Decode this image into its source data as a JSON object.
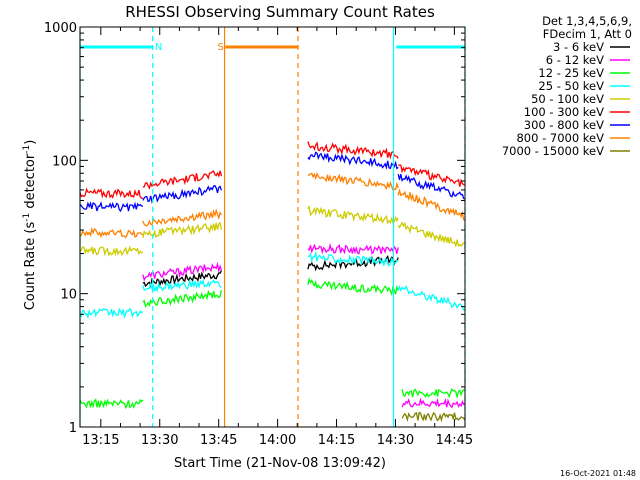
{
  "chart_data": {
    "type": "line",
    "title": "RHESSI Observing Summary Count Rates",
    "xlabel": "Start Time (21-Nov-08 13:09:42)",
    "ylabel_main": "Count Rate (s",
    "ylabel_sup1": "-1",
    "ylabel_mid": " detector",
    "ylabel_sup2": "-1",
    "ylabel_end": ")",
    "y_scale": "log",
    "ylim": [
      1,
      1000
    ],
    "xlim_minutes": [
      0,
      98
    ],
    "x_ticks": [
      {
        "label": "13:15",
        "minute": 5.3
      },
      {
        "label": "13:30",
        "minute": 20.3
      },
      {
        "label": "13:45",
        "minute": 35.3
      },
      {
        "label": "14:00",
        "minute": 50.3
      },
      {
        "label": "14:15",
        "minute": 65.3
      },
      {
        "label": "14:30",
        "minute": 80.3
      },
      {
        "label": "14:45",
        "minute": 95.3
      }
    ],
    "y_ticks": [
      {
        "label": "1",
        "value": 1
      },
      {
        "label": "10",
        "value": 10
      },
      {
        "label": "100",
        "value": 100
      },
      {
        "label": "1000",
        "value": 1000
      }
    ],
    "legend_header": [
      "Det 1,3,4,5,6,9,",
      "FDecim 1, Att 0"
    ],
    "legend_placement": "right",
    "timestamp": "16-Oct-2021 01:48",
    "markers": [
      {
        "label": "N",
        "color": "#00ffff",
        "start": 0,
        "end": 18.5,
        "label_at": 20
      },
      {
        "label": "S",
        "color": "#ff8000",
        "start": 37,
        "end": 55.5,
        "label_at": 35.8
      },
      {
        "label": "",
        "color": "#00ffff",
        "start": 80.5,
        "end": 98,
        "label_at": null
      }
    ],
    "boundaries": [
      {
        "minute": 0,
        "color": "#00ffff",
        "style": "solid"
      },
      {
        "minute": 18.5,
        "color": "#00ffff",
        "style": "dashed"
      },
      {
        "minute": 36.8,
        "color": "#ff8000",
        "style": "solid"
      },
      {
        "minute": 55.5,
        "color": "#ff8000",
        "style": "dashed"
      },
      {
        "minute": 79.8,
        "color": "#00ffff",
        "style": "solid"
      },
      {
        "minute": 98,
        "color": "#00ffff",
        "style": "dashed"
      }
    ],
    "series": [
      {
        "name": "3 - 6 keV",
        "color": "#000000",
        "segments": [
          {
            "x": [
              16,
              36
            ],
            "y": [
              12,
              14
            ]
          },
          {
            "x": [
              58,
              81
            ],
            "y": [
              16,
              18
            ]
          }
        ]
      },
      {
        "name": "6 - 12 keV",
        "color": "#ff00ff",
        "segments": [
          {
            "x": [
              16,
              36
            ],
            "y": [
              13.5,
              16
            ]
          },
          {
            "x": [
              58,
              81
            ],
            "y": [
              22,
              21
            ]
          },
          {
            "x": [
              82,
              98
            ],
            "y": [
              1.5,
              1.5
            ]
          }
        ]
      },
      {
        "name": "12 - 25 keV",
        "color": "#00ff00",
        "segments": [
          {
            "x": [
              0,
              16
            ],
            "y": [
              1.5,
              1.5
            ]
          },
          {
            "x": [
              16,
              36
            ],
            "y": [
              8.5,
              10
            ]
          },
          {
            "x": [
              58,
              81
            ],
            "y": [
              12,
              10.5
            ]
          },
          {
            "x": [
              82,
              98
            ],
            "y": [
              1.8,
              1.8
            ]
          }
        ]
      },
      {
        "name": "25 - 50 keV",
        "color": "#00ffff",
        "segments": [
          {
            "x": [
              0,
              16
            ],
            "y": [
              7.2,
              7.2
            ]
          },
          {
            "x": [
              16,
              36
            ],
            "y": [
              11,
              12
            ]
          },
          {
            "x": [
              58,
              81
            ],
            "y": [
              19,
              17
            ]
          },
          {
            "x": [
              81,
              98
            ],
            "y": [
              11,
              8
            ]
          }
        ]
      },
      {
        "name": "50 - 100 keV",
        "color": "#cccc00",
        "segments": [
          {
            "x": [
              0,
              16
            ],
            "y": [
              21,
              21
            ]
          },
          {
            "x": [
              16,
              36
            ],
            "y": [
              28,
              32
            ]
          },
          {
            "x": [
              58,
              81
            ],
            "y": [
              42,
              35
            ]
          },
          {
            "x": [
              81,
              98
            ],
            "y": [
              33,
              23
            ]
          }
        ]
      },
      {
        "name": "100 - 300 keV",
        "color": "#ff0000",
        "segments": [
          {
            "x": [
              0,
              16
            ],
            "y": [
              57,
              56
            ]
          },
          {
            "x": [
              16,
              36
            ],
            "y": [
              65,
              80
            ]
          },
          {
            "x": [
              58,
              81
            ],
            "y": [
              130,
              110
            ]
          },
          {
            "x": [
              81,
              98
            ],
            "y": [
              90,
              65
            ]
          }
        ]
      },
      {
        "name": "300 - 800 keV",
        "color": "#0000ff",
        "segments": [
          {
            "x": [
              0,
              16
            ],
            "y": [
              45,
              44
            ]
          },
          {
            "x": [
              16,
              36
            ],
            "y": [
              50,
              62
            ]
          },
          {
            "x": [
              58,
              81
            ],
            "y": [
              110,
              92
            ]
          },
          {
            "x": [
              81,
              98
            ],
            "y": [
              75,
              53
            ]
          }
        ]
      },
      {
        "name": "800 - 7000 keV",
        "color": "#ff8000",
        "segments": [
          {
            "x": [
              0,
              16
            ],
            "y": [
              29,
              28
            ]
          },
          {
            "x": [
              16,
              36
            ],
            "y": [
              34,
              40
            ]
          },
          {
            "x": [
              58,
              81
            ],
            "y": [
              78,
              63
            ]
          },
          {
            "x": [
              81,
              98
            ],
            "y": [
              58,
              38
            ]
          }
        ]
      },
      {
        "name": "7000 - 15000 keV",
        "color": "#808000",
        "segments": [
          {
            "x": [
              82,
              98
            ],
            "y": [
              1.2,
              1.2
            ]
          }
        ]
      }
    ]
  }
}
